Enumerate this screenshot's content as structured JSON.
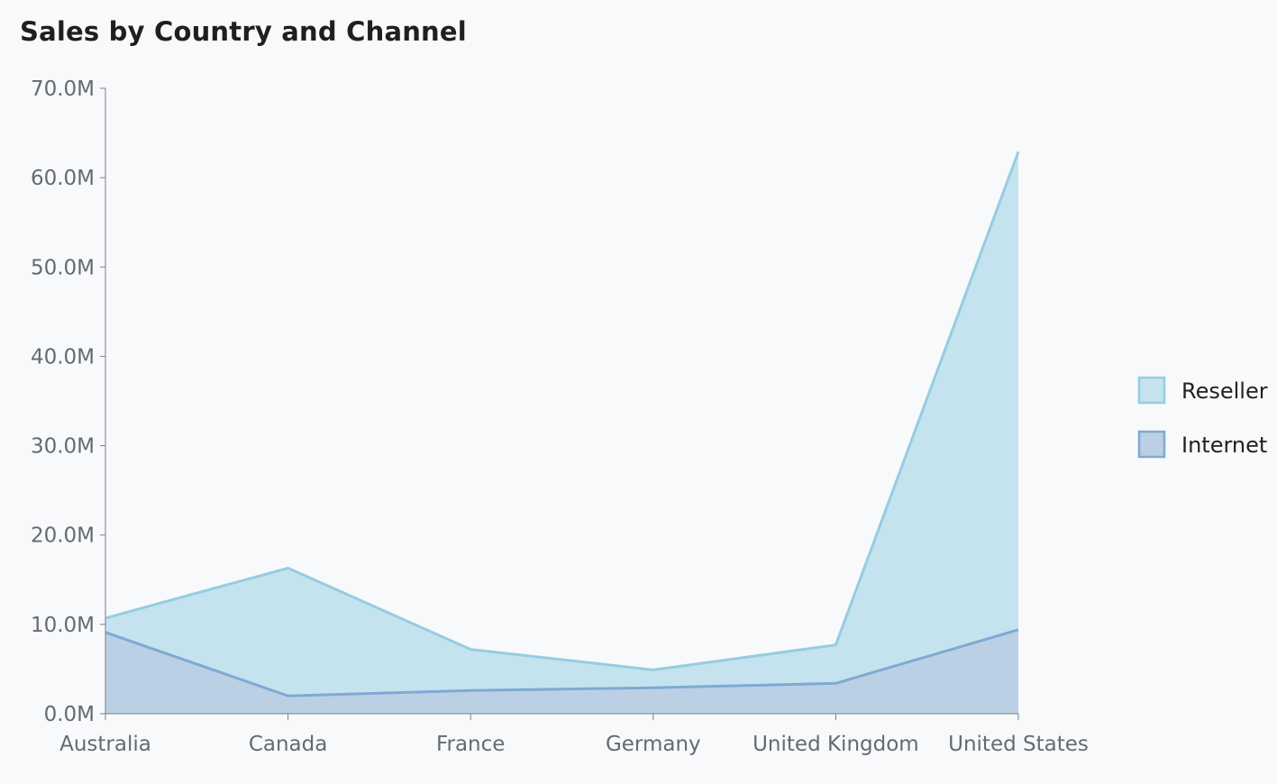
{
  "chart_data": {
    "type": "area",
    "title": "Sales by Country and Channel",
    "xlabel": "",
    "ylabel": "",
    "categories": [
      "Australia",
      "Canada",
      "France",
      "Germany",
      "United Kingdom",
      "United States"
    ],
    "series": [
      {
        "name": "Reseller",
        "values": [
          10.7,
          16.3,
          7.2,
          4.9,
          7.7,
          62.9
        ],
        "fill": "#c5e3ef",
        "stroke": "#95cde2"
      },
      {
        "name": "Internet",
        "values": [
          9.1,
          2.0,
          2.6,
          2.9,
          3.4,
          9.4
        ],
        "fill": "#bcd0e5",
        "stroke": "#7eaad3"
      }
    ],
    "overlap": true,
    "ylim": [
      0,
      70
    ],
    "yticks": [
      0,
      10,
      20,
      30,
      40,
      50,
      60,
      70
    ],
    "ytick_labels": [
      "0.0M",
      "10.0M",
      "20.0M",
      "30.0M",
      "40.0M",
      "50.0M",
      "60.0M",
      "70.0M"
    ],
    "units": "M",
    "grid": false,
    "legend_position": "right"
  },
  "colors": {
    "background": "#f8f9fb",
    "axis": "#7a7e84"
  }
}
